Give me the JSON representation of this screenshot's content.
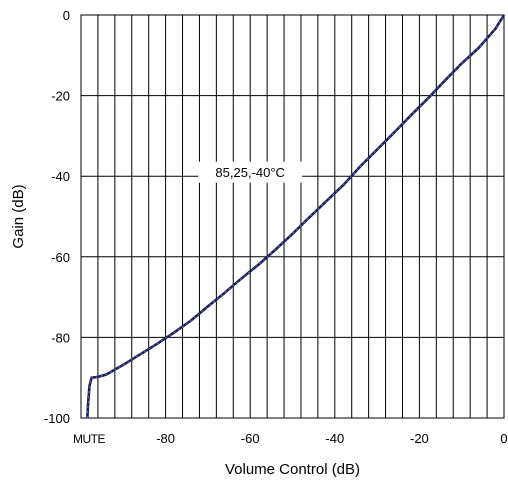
{
  "chart_data": {
    "type": "line",
    "title": "",
    "xlabel": "Volume Control (dB)",
    "ylabel": "Gain (dB)",
    "xlim": [
      -100,
      0
    ],
    "ylim": [
      -100,
      0
    ],
    "x_ticks": [
      {
        "value": -80,
        "label": "-80"
      },
      {
        "value": -60,
        "label": "-60"
      },
      {
        "value": -40,
        "label": "-40"
      },
      {
        "value": -20,
        "label": "-20"
      },
      {
        "value": 0,
        "label": "0"
      }
    ],
    "x_mute_label": "MUTE",
    "y_ticks": [
      {
        "value": 0,
        "label": "0"
      },
      {
        "value": -20,
        "label": "-20"
      },
      {
        "value": -40,
        "label": "-40"
      },
      {
        "value": -60,
        "label": "-60"
      },
      {
        "value": -80,
        "label": "-80"
      },
      {
        "value": -100,
        "label": "-100"
      }
    ],
    "x_grid_step": 4,
    "y_grid_step": 20,
    "grid": true,
    "annotation": "85,25,-40°C",
    "series": [
      {
        "name": "",
        "color": "#1a1f5c",
        "x": [
          -98.5,
          -98.3,
          -98.0,
          -97.5,
          -96,
          -94,
          -90,
          -86,
          -82,
          -78,
          -74,
          -70,
          -66,
          -62,
          -58,
          -54,
          -50,
          -46,
          -42,
          -38,
          -34,
          -30,
          -26,
          -22,
          -18,
          -14,
          -10,
          -6,
          -2,
          0
        ],
        "y": [
          -100,
          -96,
          -92,
          -90,
          -89.8,
          -89.2,
          -86.8,
          -84.2,
          -81.6,
          -78.8,
          -75.8,
          -72.3,
          -68.9,
          -65.3,
          -61.9,
          -58.2,
          -54.3,
          -50.2,
          -46.2,
          -42.2,
          -37.6,
          -33.4,
          -29.2,
          -24.9,
          -20.7,
          -16.3,
          -12.0,
          -8.2,
          -3.4,
          0
        ]
      }
    ]
  }
}
